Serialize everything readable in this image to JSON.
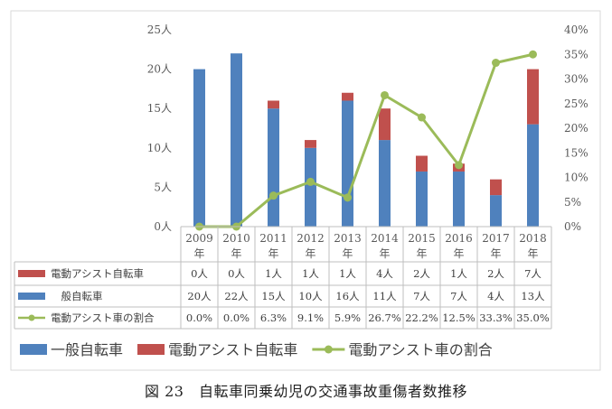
{
  "chart_data": {
    "type": "bar",
    "stacked": true,
    "categories": [
      "2009",
      "2010",
      "2011",
      "2012",
      "2013",
      "2014",
      "2015",
      "2016",
      "2017",
      "2018"
    ],
    "category_suffix": "年",
    "series": [
      {
        "name": "一般自転車",
        "type": "bar",
        "axis": "left",
        "color": "#4F81BD",
        "values": [
          20,
          22,
          15,
          10,
          16,
          11,
          7,
          7,
          4,
          13
        ],
        "table_label": "　般自転車",
        "table_values": [
          "20人",
          "22人",
          "15人",
          "10人",
          "16人",
          "11人",
          "7人",
          "7人",
          "4人",
          "13人"
        ]
      },
      {
        "name": "電動アシスト自転車",
        "type": "bar",
        "axis": "left",
        "color": "#C0504D",
        "values": [
          0,
          0,
          1,
          1,
          1,
          4,
          2,
          1,
          2,
          7
        ],
        "table_label": "電動アシスト自転車",
        "table_values": [
          "0人",
          "0人",
          "1人",
          "1人",
          "1人",
          "4人",
          "2人",
          "1人",
          "2人",
          "7人"
        ]
      },
      {
        "name": "電動アシスト車の割合",
        "type": "line",
        "axis": "right",
        "color": "#9BBB59",
        "values": [
          0.0,
          0.0,
          6.3,
          9.1,
          5.9,
          26.7,
          22.2,
          12.5,
          33.3,
          35.0
        ],
        "table_label": "電動アシスト車の割合",
        "table_values": [
          "0.0%",
          "0.0%",
          "6.3%",
          "9.1%",
          "5.9%",
          "26.7%",
          "22.2%",
          "12.5%",
          "33.3%",
          "35.0%"
        ]
      }
    ],
    "ylim": [
      0,
      25
    ],
    "y_ticks": [
      "0人",
      "5人",
      "10人",
      "15人",
      "20人",
      "25人"
    ],
    "y2lim": [
      0,
      40
    ],
    "y2_ticks": [
      "0%",
      "5%",
      "10%",
      "15%",
      "20%",
      "25%",
      "30%",
      "35%",
      "40%"
    ],
    "legend_position": "bottom",
    "grid": false,
    "data_table": true
  },
  "caption": "図 23　自転車同乗幼児の交通事故重傷者数推移"
}
